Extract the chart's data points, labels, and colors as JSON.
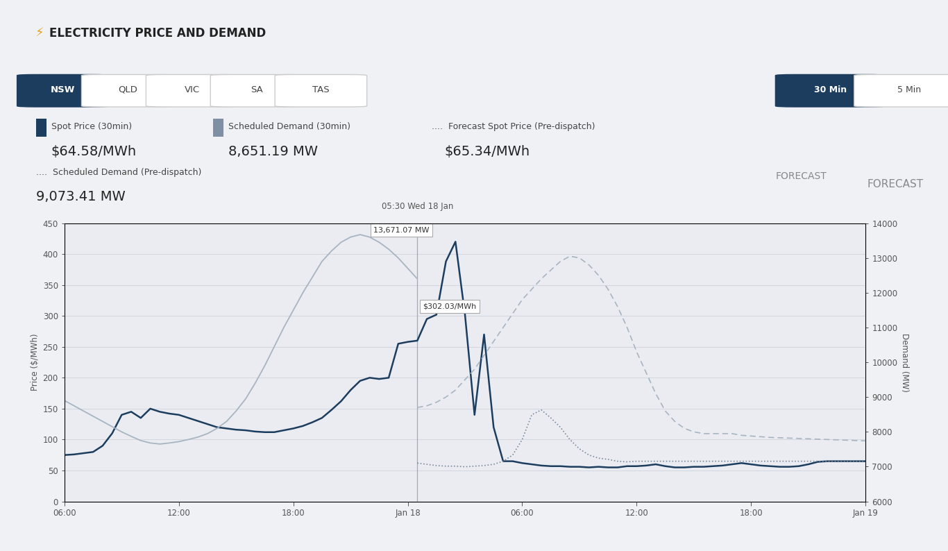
{
  "title": "ELECTRICITY PRICE AND DEMAND",
  "subtitle_time": "05:30 Wed 18 Jan",
  "forecast_label": "FORECAST",
  "spot_price_label": "Spot Price (30min)",
  "spot_price_value": "$64.58/MWh",
  "sched_demand_label": "Scheduled Demand (30min)",
  "sched_demand_value": "8,651.19 MW",
  "forecast_spot_label": "Forecast Spot Price (Pre-dispatch)",
  "forecast_spot_value": "$65.34/MWh",
  "sched_demand_pd_label": "Scheduled Demand (Pre-dispatch)",
  "sched_demand_pd_value": "9,073.41 MW",
  "regions": [
    "NSW",
    "QLD",
    "VIC",
    "SA",
    "TAS"
  ],
  "active_region": "NSW",
  "time_buttons": [
    "30 Min",
    "5 Min"
  ],
  "active_time": "30 Min",
  "tooltip_demand": "13,671.07 MW",
  "tooltip_price": "$302.03/MWh",
  "price_color": "#1c3d5e",
  "demand_color": "#a8b4c0",
  "forecast_price_color": "#7a8a9a",
  "forecast_demand_color": "#a8b4c0",
  "bg_color": "#eaecf2",
  "header_bg": "#f0f1f5",
  "white_bg": "#ffffff",
  "yticks_price": [
    0,
    50,
    100,
    150,
    200,
    250,
    300,
    350,
    400,
    450
  ],
  "yticks_demand": [
    6000,
    7000,
    8000,
    9000,
    10000,
    11000,
    12000,
    13000,
    14000
  ],
  "xtick_positions": [
    0,
    6,
    12,
    18,
    24,
    30,
    36,
    42
  ],
  "xtick_labels": [
    "06:00",
    "12:00",
    "18:00",
    "Jan 18",
    "06:00",
    "12:00",
    "18:00",
    "Jan 19"
  ],
  "vline_pos": 18.5,
  "price_x": [
    0.0,
    0.5,
    1.0,
    1.5,
    2.0,
    2.5,
    3.0,
    3.5,
    4.0,
    4.5,
    5.0,
    5.5,
    6.0,
    6.5,
    7.0,
    7.5,
    8.0,
    8.5,
    9.0,
    9.5,
    10.0,
    10.5,
    11.0,
    11.5,
    12.0,
    12.5,
    13.0,
    13.5,
    14.0,
    14.5,
    15.0,
    15.5,
    16.0,
    16.5,
    17.0,
    17.5,
    18.0,
    18.5,
    19.0,
    19.5,
    20.0,
    20.5,
    21.0,
    21.5,
    22.0,
    22.5,
    23.0,
    23.5,
    24.0,
    24.5,
    25.0,
    25.5,
    26.0,
    26.5,
    27.0,
    27.5,
    28.0,
    28.5,
    29.0,
    29.5,
    30.0,
    30.5,
    31.0,
    31.5,
    32.0,
    32.5,
    33.0,
    33.5,
    34.0,
    34.5,
    35.0,
    35.5,
    36.0,
    36.5,
    37.0,
    37.5,
    38.0,
    38.5,
    39.0,
    39.5,
    40.0,
    40.5,
    41.0,
    41.5,
    42.0
  ],
  "price_y": [
    75,
    76,
    78,
    80,
    90,
    110,
    140,
    145,
    135,
    150,
    145,
    142,
    140,
    135,
    130,
    125,
    120,
    118,
    116,
    115,
    113,
    112,
    112,
    115,
    118,
    122,
    128,
    135,
    148,
    162,
    180,
    195,
    200,
    198,
    200,
    255,
    258,
    260,
    295,
    302,
    388,
    420,
    302,
    140,
    270,
    120,
    65,
    65,
    62,
    60,
    58,
    57,
    57,
    56,
    56,
    55,
    56,
    55,
    55,
    57,
    57,
    58,
    60,
    57,
    55,
    55,
    56,
    56,
    57,
    58,
    60,
    62,
    60,
    58,
    57,
    56,
    56,
    57,
    60,
    64,
    65,
    65,
    65,
    65,
    65
  ],
  "demand_x": [
    0.0,
    0.5,
    1.0,
    1.5,
    2.0,
    2.5,
    3.0,
    3.5,
    4.0,
    4.5,
    5.0,
    5.5,
    6.0,
    6.5,
    7.0,
    7.5,
    8.0,
    8.5,
    9.0,
    9.5,
    10.0,
    10.5,
    11.0,
    11.5,
    12.0,
    12.5,
    13.0,
    13.5,
    14.0,
    14.5,
    15.0,
    15.5,
    16.0,
    16.5,
    17.0,
    17.5,
    18.0,
    18.5
  ],
  "demand_y": [
    8900,
    8750,
    8600,
    8450,
    8300,
    8150,
    8000,
    7870,
    7750,
    7680,
    7650,
    7680,
    7720,
    7780,
    7850,
    7950,
    8100,
    8300,
    8600,
    8950,
    9400,
    9900,
    10450,
    11000,
    11500,
    12000,
    12450,
    12900,
    13200,
    13450,
    13600,
    13671,
    13600,
    13450,
    13250,
    13000,
    12700,
    12400
  ],
  "forecast_price_x": [
    18.5,
    19.0,
    19.5,
    20.0,
    20.5,
    21.0,
    21.5,
    22.0,
    22.5,
    23.0,
    23.5,
    24.0,
    24.5,
    25.0,
    25.5,
    26.0,
    26.5,
    27.0,
    27.5,
    28.0,
    28.5,
    29.0,
    29.5,
    30.0,
    30.5,
    31.0,
    31.5,
    32.0,
    32.5,
    33.0,
    33.5,
    34.0,
    34.5,
    35.0,
    35.5,
    36.0,
    36.5,
    37.0,
    37.5,
    38.0,
    38.5,
    39.0,
    39.5,
    40.0,
    40.5,
    41.0,
    41.5,
    42.0
  ],
  "forecast_price_y": [
    62,
    60,
    58,
    57,
    57,
    56,
    57,
    58,
    60,
    65,
    75,
    100,
    140,
    148,
    135,
    120,
    100,
    85,
    75,
    70,
    68,
    65,
    64,
    65,
    65,
    65,
    65,
    65,
    65,
    65,
    65,
    65,
    65,
    65,
    65,
    65,
    65,
    65,
    65,
    65,
    65,
    65,
    65,
    65,
    65,
    65,
    65,
    65
  ],
  "forecast_demand_x": [
    18.5,
    19.0,
    19.5,
    20.0,
    20.5,
    21.0,
    21.5,
    22.0,
    22.5,
    23.0,
    23.5,
    24.0,
    24.5,
    25.0,
    25.5,
    26.0,
    26.5,
    27.0,
    27.5,
    28.0,
    28.5,
    29.0,
    29.5,
    30.0,
    30.5,
    31.0,
    31.5,
    32.0,
    32.5,
    33.0,
    33.5,
    34.0,
    34.5,
    35.0,
    35.5,
    36.0,
    36.5,
    37.0,
    37.5,
    38.0,
    38.5,
    39.0,
    39.5,
    40.0,
    40.5,
    41.0,
    41.5,
    42.0
  ],
  "forecast_demand_y": [
    8700,
    8750,
    8850,
    9000,
    9200,
    9500,
    9800,
    10200,
    10600,
    11000,
    11400,
    11800,
    12100,
    12400,
    12650,
    12900,
    13050,
    13000,
    12800,
    12500,
    12100,
    11600,
    11000,
    10300,
    9700,
    9100,
    8600,
    8300,
    8100,
    8000,
    7950,
    7950,
    7950,
    7950,
    7900,
    7880,
    7860,
    7840,
    7830,
    7820,
    7810,
    7800,
    7790,
    7780,
    7770,
    7760,
    7750,
    7740
  ]
}
